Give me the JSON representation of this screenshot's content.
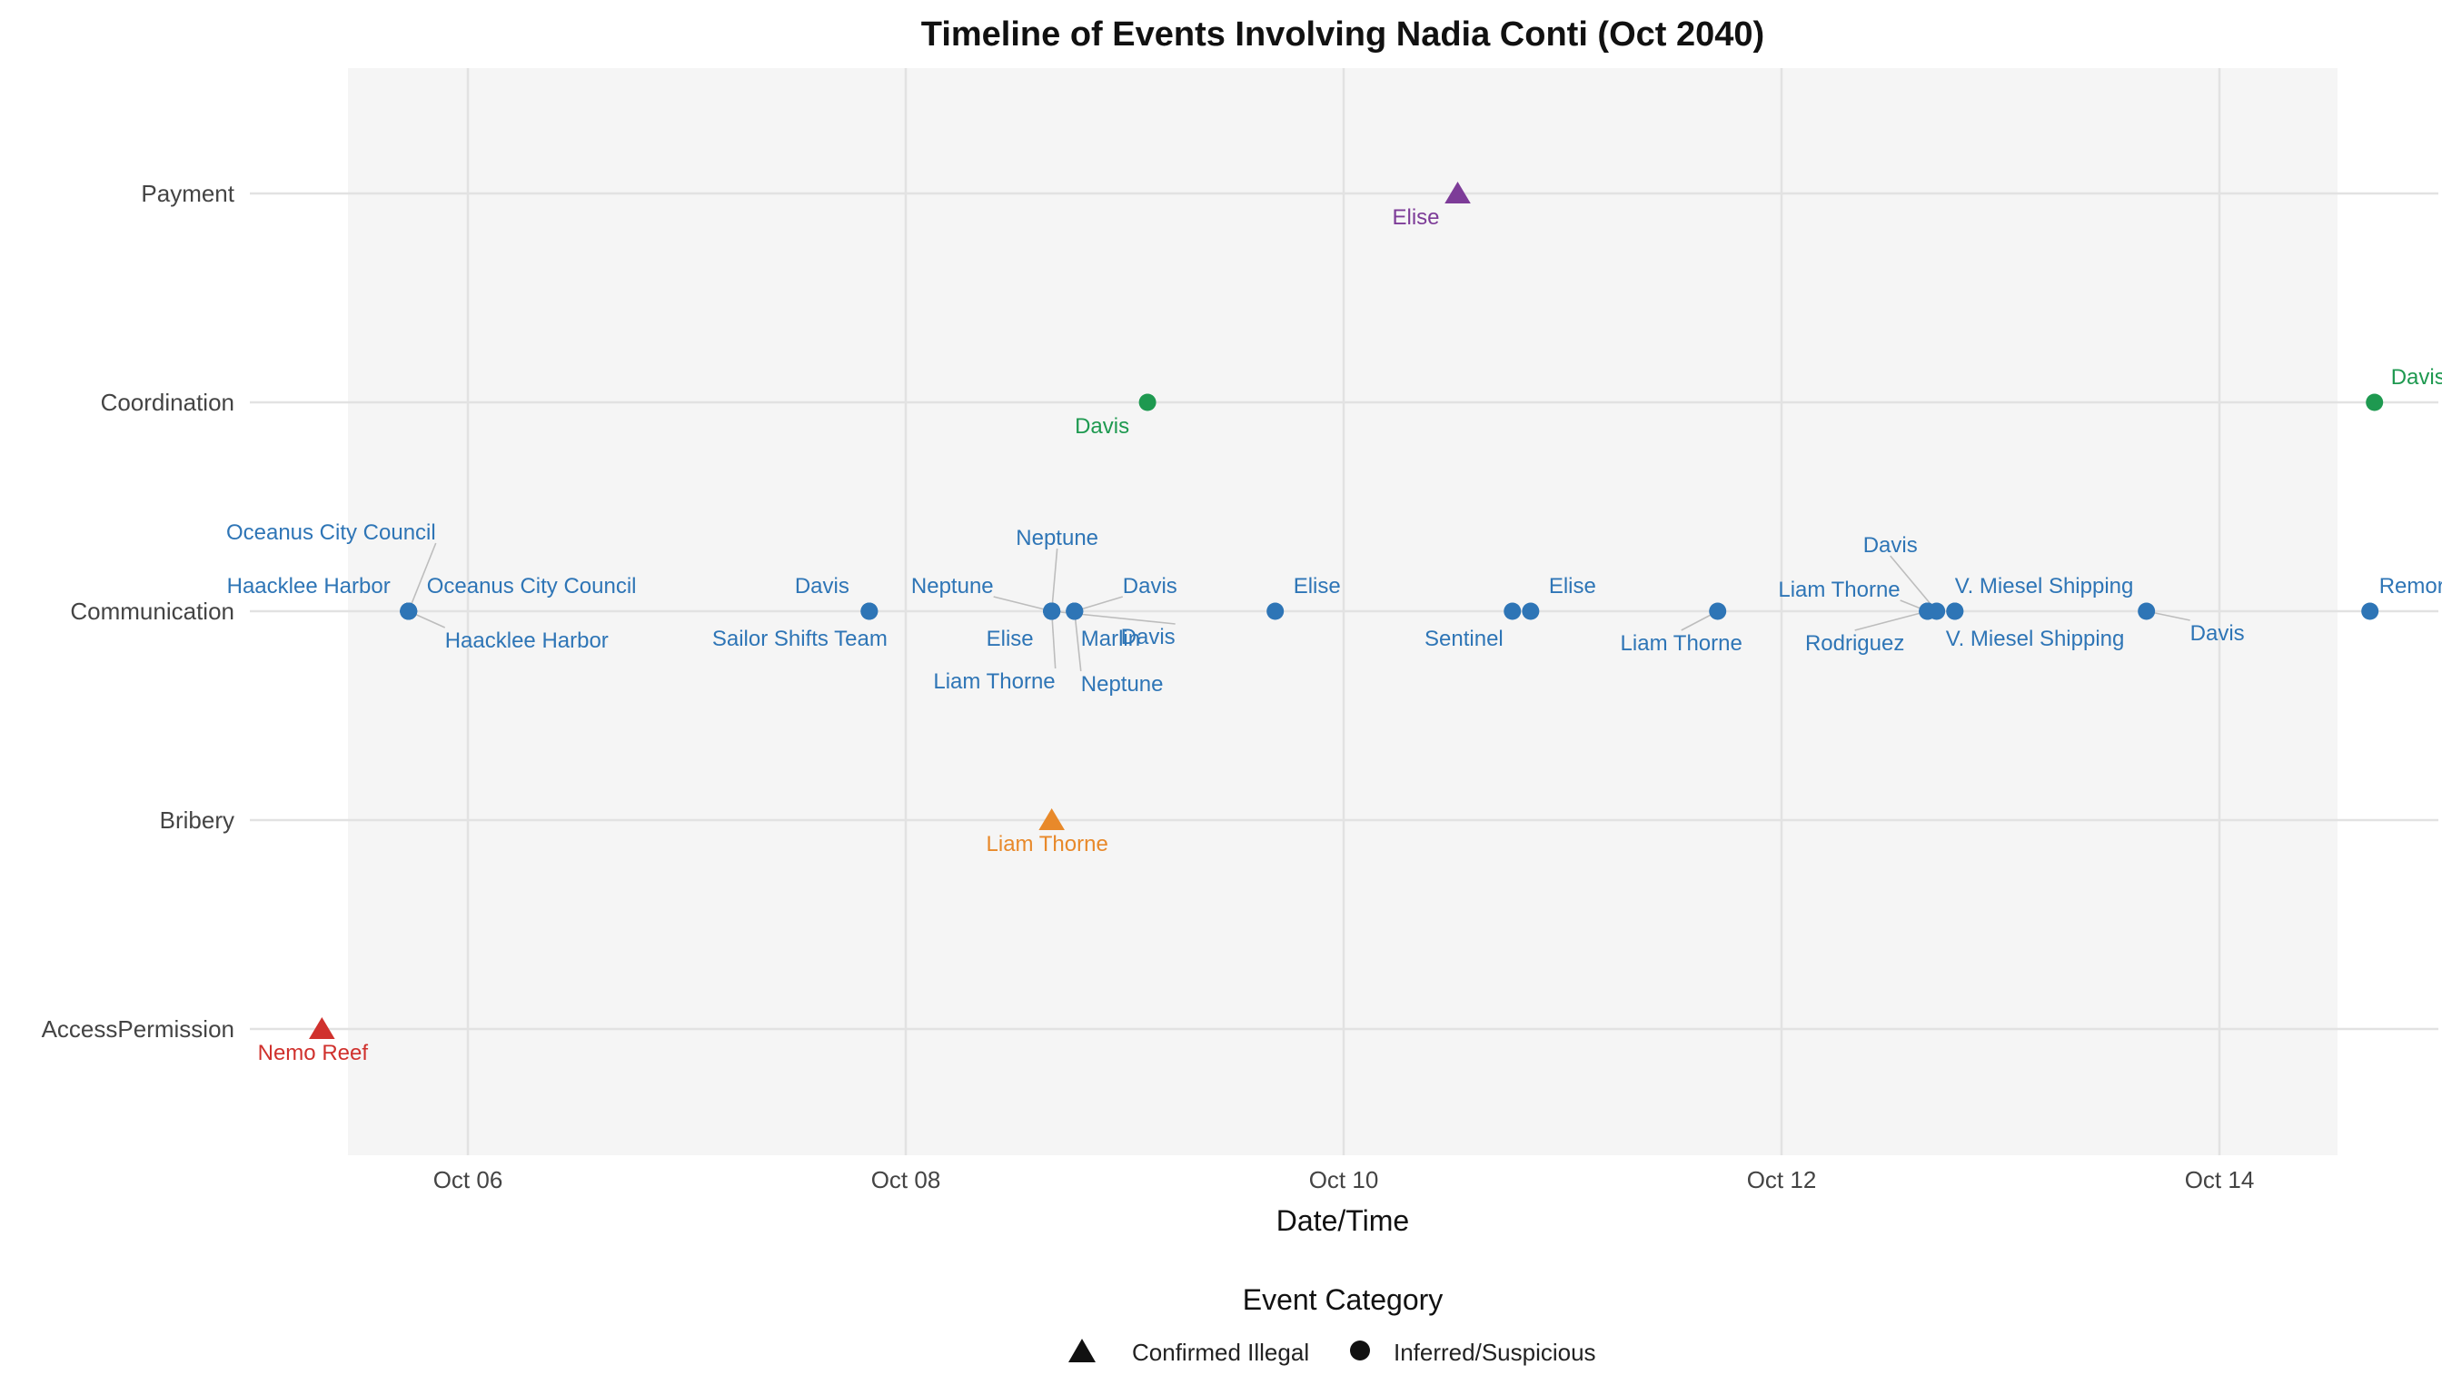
{
  "chart_data": {
    "type": "scatter",
    "title": "Timeline of Events Involving Nadia Conti (Oct 2040)",
    "xlabel": "Date/Time",
    "ylabel": "",
    "x_ticks": [
      "Oct 06",
      "Oct 08",
      "Oct 10",
      "Oct 12",
      "Oct 14"
    ],
    "x_tick_dates": [
      "2040-10-06",
      "2040-10-08",
      "2040-10-10",
      "2040-10-12",
      "2040-10-14"
    ],
    "xlim": [
      "2040-10-05 00:00",
      "2040-10-15 00:00"
    ],
    "categories": [
      "Payment",
      "Coordination",
      "Communication",
      "Bribery",
      "AccessPermission"
    ],
    "grid": true,
    "legend": {
      "title": "Event Category",
      "position": "bottom",
      "entries": [
        {
          "label": "Confirmed Illegal",
          "shape": "triangle"
        },
        {
          "label": "Inferred/Suspicious",
          "shape": "circle"
        }
      ]
    },
    "colors": {
      "Payment": "#7d3c98",
      "Coordination": "#1e9950",
      "Communication": "#2e75b6",
      "Bribery": "#e8892a",
      "AccessPermission": "#d0312d"
    },
    "points": [
      {
        "x": "2040-10-10 12:30",
        "category": "Payment",
        "label": "Elise",
        "status": "Confirmed Illegal"
      },
      {
        "x": "2040-10-09 02:30",
        "category": "Coordination",
        "label": "Davis",
        "status": "Inferred/Suspicious"
      },
      {
        "x": "2040-10-14 17:00",
        "category": "Coordination",
        "label": "Davis",
        "status": "Inferred/Suspicious"
      },
      {
        "x": "2040-10-08 16:00",
        "category": "Bribery",
        "label": "Liam Thorne",
        "status": "Confirmed Illegal"
      },
      {
        "x": "2040-10-05 08:00",
        "category": "AccessPermission",
        "label": "Nemo Reef",
        "status": "Confirmed Illegal"
      },
      {
        "x": "2040-10-05 17:30",
        "category": "Communication",
        "label": "Oceanus City Council",
        "status": "Inferred/Suspicious"
      },
      {
        "x": "2040-10-05 17:30",
        "category": "Communication",
        "label": "Haacklee Harbor",
        "status": "Inferred/Suspicious"
      },
      {
        "x": "2040-10-05 17:30",
        "category": "Communication",
        "label": "Oceanus City Council",
        "status": "Inferred/Suspicious"
      },
      {
        "x": "2040-10-05 17:30",
        "category": "Communication",
        "label": "Haacklee Harbor",
        "status": "Inferred/Suspicious"
      },
      {
        "x": "2040-10-07 20:00",
        "category": "Communication",
        "label": "Davis",
        "status": "Inferred/Suspicious"
      },
      {
        "x": "2040-10-07 20:00",
        "category": "Communication",
        "label": "Sailor Shifts Team",
        "status": "Inferred/Suspicious"
      },
      {
        "x": "2040-10-08 16:00",
        "category": "Communication",
        "label": "Neptune",
        "status": "Inferred/Suspicious"
      },
      {
        "x": "2040-10-08 16:00",
        "category": "Communication",
        "label": "Neptune",
        "status": "Inferred/Suspicious"
      },
      {
        "x": "2040-10-08 16:00",
        "category": "Communication",
        "label": "Elise",
        "status": "Inferred/Suspicious"
      },
      {
        "x": "2040-10-08 16:00",
        "category": "Communication",
        "label": "Liam Thorne",
        "status": "Inferred/Suspicious"
      },
      {
        "x": "2040-10-08 16:00",
        "category": "Communication",
        "label": "Davis",
        "status": "Inferred/Suspicious"
      },
      {
        "x": "2040-10-08 18:30",
        "category": "Communication",
        "label": "Davis",
        "status": "Inferred/Suspicious"
      },
      {
        "x": "2040-10-08 18:30",
        "category": "Communication",
        "label": "Marlin",
        "status": "Inferred/Suspicious"
      },
      {
        "x": "2040-10-08 18:30",
        "category": "Communication",
        "label": "Neptune",
        "status": "Inferred/Suspicious"
      },
      {
        "x": "2040-10-09 16:30",
        "category": "Communication",
        "label": "Elise",
        "status": "Inferred/Suspicious"
      },
      {
        "x": "2040-10-10 18:30",
        "category": "Communication",
        "label": "Sentinel",
        "status": "Inferred/Suspicious"
      },
      {
        "x": "2040-10-10 20:30",
        "category": "Communication",
        "label": "Elise",
        "status": "Inferred/Suspicious"
      },
      {
        "x": "2040-10-11 17:00",
        "category": "Communication",
        "label": "Liam Thorne",
        "status": "Inferred/Suspicious"
      },
      {
        "x": "2040-10-12 16:00",
        "category": "Communication",
        "label": "Liam Thorne",
        "status": "Inferred/Suspicious"
      },
      {
        "x": "2040-10-12 16:00",
        "category": "Communication",
        "label": "Rodriguez",
        "status": "Inferred/Suspicious"
      },
      {
        "x": "2040-10-12 17:00",
        "category": "Communication",
        "label": "Davis",
        "status": "Inferred/Suspicious"
      },
      {
        "x": "2040-10-12 19:00",
        "category": "Communication",
        "label": "V. Miesel Shipping",
        "status": "Inferred/Suspicious"
      },
      {
        "x": "2040-10-12 19:00",
        "category": "Communication",
        "label": "V. Miesel Shipping",
        "status": "Inferred/Suspicious"
      },
      {
        "x": "2040-10-13 16:00",
        "category": "Communication",
        "label": "Davis",
        "status": "Inferred/Suspicious"
      },
      {
        "x": "2040-10-14 16:30",
        "category": "Communication",
        "label": "Remora",
        "status": "Inferred/Suspicious"
      }
    ]
  }
}
